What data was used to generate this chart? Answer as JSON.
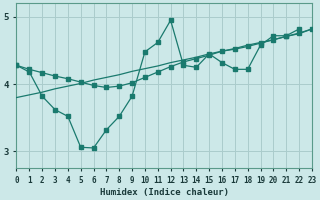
{
  "xlabel": "Humidex (Indice chaleur)",
  "bg_color": "#cce8e8",
  "line_color": "#1a7a6e",
  "grid_color": "#aacccc",
  "x_data": [
    0,
    1,
    2,
    3,
    4,
    5,
    6,
    7,
    8,
    9,
    10,
    11,
    12,
    13,
    14,
    15,
    16,
    17,
    18,
    19,
    20,
    21,
    22,
    23
  ],
  "y_main": [
    4.28,
    4.18,
    3.82,
    3.62,
    3.52,
    3.06,
    3.05,
    3.32,
    3.52,
    3.82,
    4.48,
    4.62,
    4.95,
    4.28,
    4.25,
    4.45,
    4.32,
    4.22,
    4.22,
    4.58,
    4.72,
    4.72,
    4.82,
    null
  ],
  "y_trend1": [
    4.28,
    4.22,
    4.17,
    4.12,
    4.08,
    4.03,
    3.98,
    3.95,
    3.97,
    4.02,
    4.1,
    4.18,
    4.26,
    4.33,
    4.38,
    4.43,
    4.49,
    4.52,
    4.56,
    4.61,
    4.66,
    4.71,
    4.76,
    4.82
  ],
  "y_trend2": [
    3.8,
    3.84,
    3.88,
    3.93,
    3.97,
    4.01,
    4.06,
    4.1,
    4.14,
    4.19,
    4.23,
    4.27,
    4.32,
    4.36,
    4.4,
    4.45,
    4.49,
    4.53,
    4.58,
    4.62,
    4.66,
    4.71,
    4.75,
    4.82
  ],
  "xlim": [
    0,
    23
  ],
  "ylim": [
    2.75,
    5.2
  ],
  "yticks": [
    3,
    4,
    5
  ],
  "xticks": [
    0,
    1,
    2,
    3,
    4,
    5,
    6,
    7,
    8,
    9,
    10,
    11,
    12,
    13,
    14,
    15,
    16,
    17,
    18,
    19,
    20,
    21,
    22,
    23
  ]
}
